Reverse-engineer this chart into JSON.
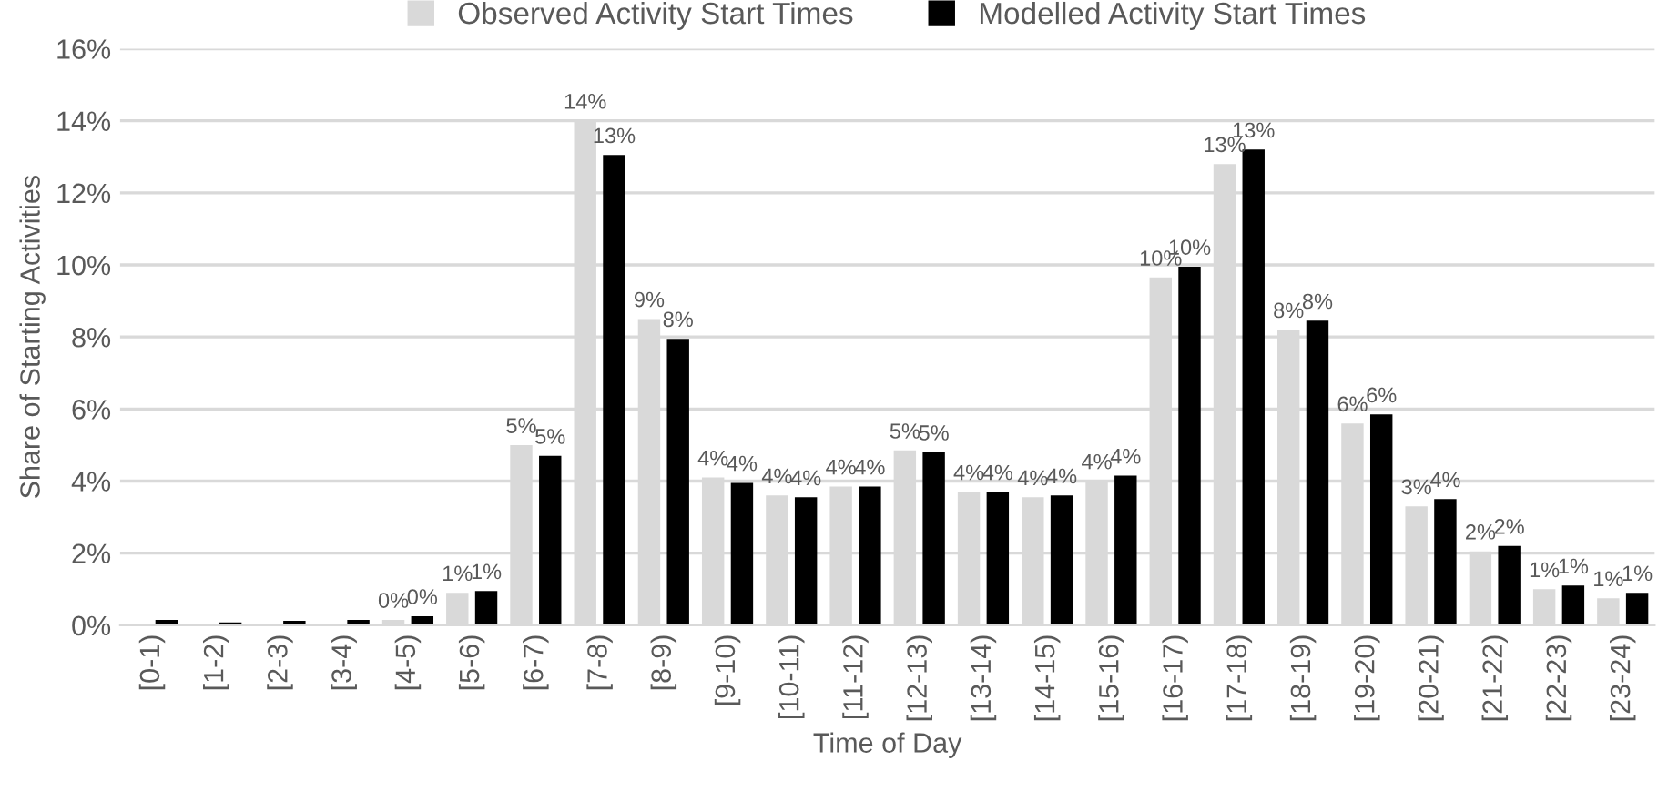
{
  "chart_data": {
    "type": "bar",
    "xlabel": "Time of Day",
    "ylabel": "Share of Starting Activities",
    "categories": [
      "[0-1)",
      "[1-2)",
      "[2-3)",
      "[3-4)",
      "[4-5)",
      "[5-6)",
      "[6-7)",
      "[7-8)",
      "[8-9)",
      "[9-10)",
      "[10-11)",
      "[11-12)",
      "[12-13)",
      "[13-14)",
      "[14-15)",
      "[15-16)",
      "[16-17)",
      "[17-18)",
      "[18-19)",
      "[19-20)",
      "[20-21)",
      "[21-22)",
      "[22-23)",
      "[23-24)"
    ],
    "series": [
      {
        "name": "Observed Activity Start Times",
        "color": "#d9d9d9",
        "values": [
          null,
          0.02,
          0.03,
          null,
          0.15,
          0.9,
          5.0,
          14.0,
          8.5,
          4.1,
          3.6,
          3.85,
          4.85,
          3.7,
          3.55,
          4.0,
          9.65,
          12.8,
          8.2,
          5.6,
          3.3,
          2.05,
          1.0,
          0.75
        ],
        "value_labels": [
          null,
          null,
          null,
          null,
          "0%",
          "1%",
          "5%",
          "14%",
          "9%",
          "4%",
          "4%",
          "4%",
          "5%",
          "4%",
          "4%",
          "4%",
          "10%",
          "13%",
          "8%",
          "6%",
          "3%",
          "2%",
          "1%",
          "1%"
        ]
      },
      {
        "name": "Modelled Activity Start Times",
        "color": "#000000",
        "values": [
          0.15,
          0.08,
          0.12,
          0.15,
          0.25,
          0.95,
          4.7,
          13.05,
          7.95,
          3.95,
          3.55,
          3.85,
          4.8,
          3.7,
          3.6,
          4.15,
          9.95,
          13.2,
          8.45,
          5.85,
          3.5,
          2.2,
          1.1,
          0.9
        ],
        "value_labels": [
          null,
          null,
          null,
          null,
          "0%",
          "1%",
          "5%",
          "13%",
          "8%",
          "4%",
          "4%",
          "4%",
          "5%",
          "4%",
          "4%",
          "4%",
          "10%",
          "13%",
          "8%",
          "6%",
          "4%",
          "2%",
          "1%",
          "1%"
        ]
      }
    ],
    "ylim": [
      0,
      16
    ],
    "yticks": [
      {
        "value": 0,
        "label": "0%"
      },
      {
        "value": 2,
        "label": "2%"
      },
      {
        "value": 4,
        "label": "4%"
      },
      {
        "value": 6,
        "label": "6%"
      },
      {
        "value": 8,
        "label": "8%"
      },
      {
        "value": 10,
        "label": "10%"
      },
      {
        "value": 12,
        "label": "12%"
      },
      {
        "value": 14,
        "label": "14%"
      },
      {
        "value": 16,
        "label": "16%"
      }
    ],
    "grid": "y",
    "legend": "top"
  }
}
